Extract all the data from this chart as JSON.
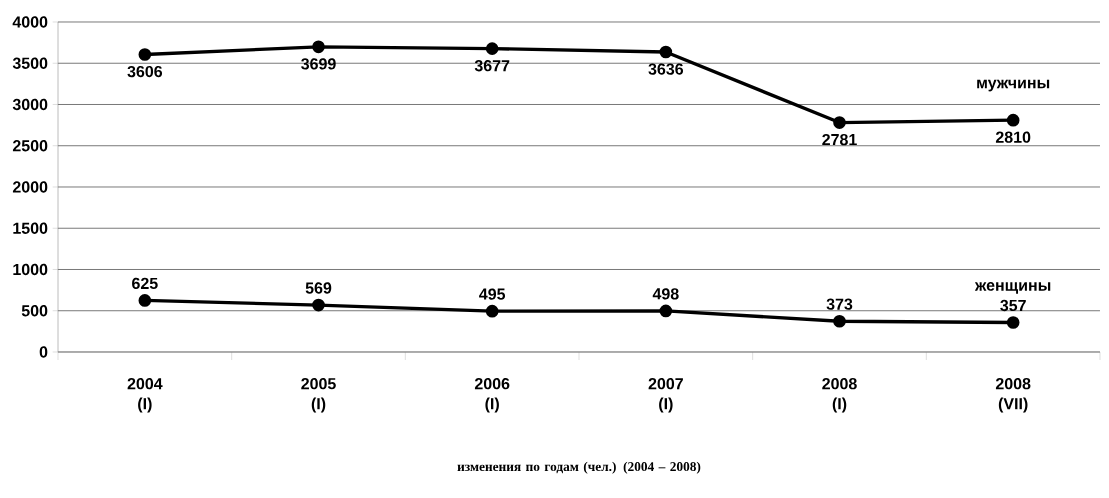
{
  "chart_data": {
    "type": "line",
    "xlabel": "изменения по годам (чел.) (2004 – 2008)",
    "categories": [
      "2004 (I)",
      "2005 (I)",
      "2006 (I)",
      "2007 (I)",
      "2008 (I)",
      "2008 (VII)"
    ],
    "series": [
      {
        "name": "мужчины",
        "color": "#000000",
        "values": [
          3606,
          3699,
          3677,
          3636,
          2781,
          2810
        ]
      },
      {
        "name": "женщины",
        "color": "#000000",
        "values": [
          625,
          569,
          495,
          498,
          373,
          357
        ]
      }
    ],
    "ylim": [
      0,
      4000
    ],
    "yticks": [
      0,
      500,
      1000,
      1500,
      2000,
      2500,
      3000,
      3500,
      4000
    ],
    "grid": "y",
    "marker": "circle",
    "line_style": "solid",
    "data_labels": true
  }
}
